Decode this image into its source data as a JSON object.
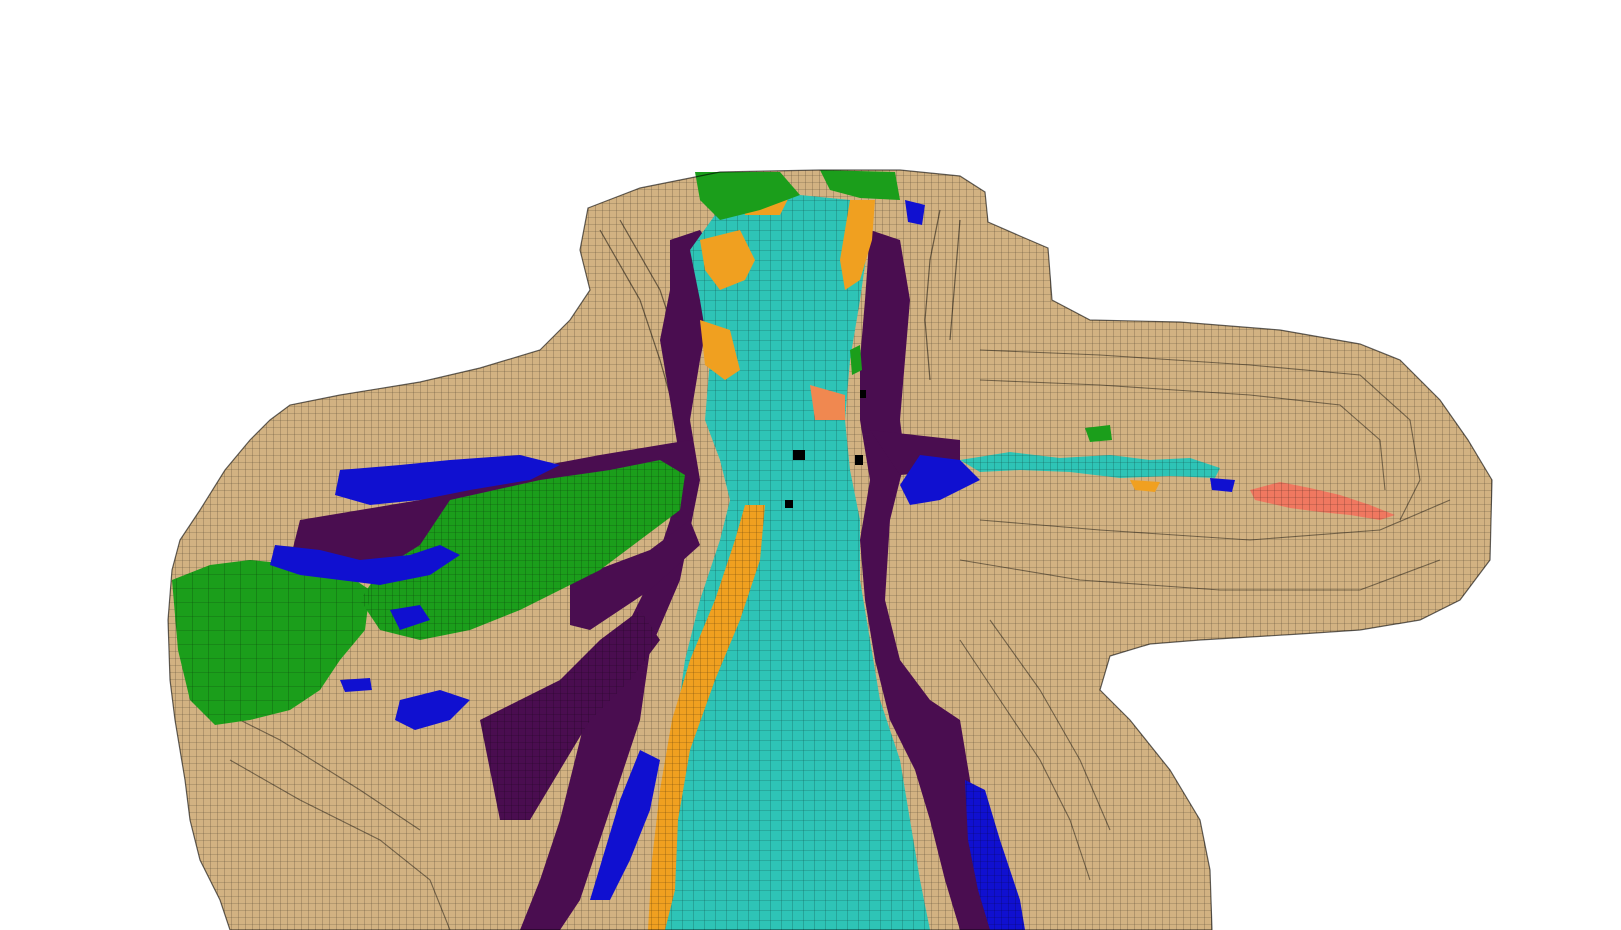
{
  "scene": {
    "background": "#ffffff",
    "legend_colors": {
      "sand": "#d4b483",
      "cyan": "#2ec4b6",
      "purple": "#4b0f52",
      "blue": "#1010d0",
      "green": "#1b9e1b",
      "orange": "#f0a020",
      "salmon": "#f07860",
      "black": "#000000"
    }
  }
}
